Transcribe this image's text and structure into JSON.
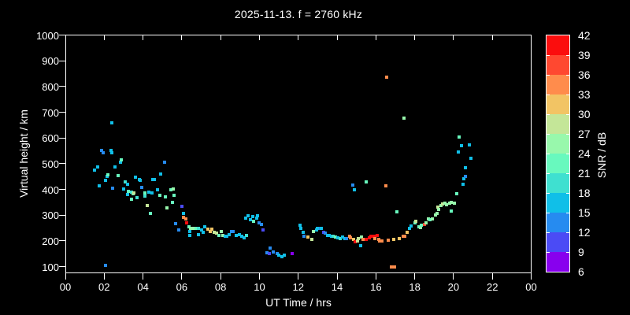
{
  "colors": {
    "background": "#000000",
    "foreground": "#ffffff"
  },
  "chart_data": {
    "type": "scatter",
    "title": "2025-11-13. f = 2760 kHz",
    "xlabel": "UT Time / hrs",
    "ylabel": "Virtual height / km",
    "x_unit": "hours UT",
    "y_unit": "km",
    "color_unit": "SNR / dB",
    "x_range_hours": [
      0,
      24
    ],
    "y_range_km": [
      100,
      1000
    ],
    "x_tick_hours": [
      0,
      2,
      4,
      6,
      8,
      10,
      12,
      14,
      16,
      18,
      20,
      22,
      24
    ],
    "x_tick_labels": [
      "00",
      "02",
      "04",
      "06",
      "08",
      "10",
      "12",
      "14",
      "16",
      "18",
      "20",
      "22",
      "00"
    ],
    "y_tick_km": [
      100,
      200,
      300,
      400,
      500,
      600,
      700,
      800,
      900,
      1000
    ],
    "y_tick_labels": [
      "100",
      "200",
      "300",
      "400",
      "500",
      "600",
      "700",
      "800",
      "900",
      "1000"
    ],
    "grid": false,
    "marker": "square",
    "points_format": [
      "ut_hours",
      "virtual_height_km",
      "snr_db"
    ],
    "points": [
      [
        1.5,
        476,
        16.5
      ],
      [
        1.65,
        486,
        16.5
      ],
      [
        1.75,
        415,
        16.5
      ],
      [
        1.85,
        553,
        13.5
      ],
      [
        1.95,
        541,
        13.5
      ],
      [
        2.05,
        106,
        13.5
      ],
      [
        2.05,
        434,
        16.5
      ],
      [
        2.15,
        452,
        16.5
      ],
      [
        2.2,
        458,
        22.5
      ],
      [
        2.35,
        553,
        16.5
      ],
      [
        2.4,
        660,
        16.5
      ],
      [
        2.4,
        541,
        16.5
      ],
      [
        2.45,
        406,
        13.5
      ],
      [
        2.55,
        486,
        16.5
      ],
      [
        2.7,
        455,
        22.5
      ],
      [
        2.85,
        507,
        16.5
      ],
      [
        2.9,
        516,
        22.5
      ],
      [
        3.0,
        403,
        16.5
      ],
      [
        3.1,
        430,
        19.5
      ],
      [
        3.2,
        421,
        16.5
      ],
      [
        3.2,
        379,
        16.5
      ],
      [
        3.25,
        391,
        22.5
      ],
      [
        3.4,
        388,
        19.5
      ],
      [
        3.4,
        363,
        22.5
      ],
      [
        3.5,
        382,
        22.5
      ],
      [
        3.55,
        385,
        28.5
      ],
      [
        3.6,
        446,
        16.5
      ],
      [
        3.7,
        369,
        19.5
      ],
      [
        3.8,
        437,
        16.5
      ],
      [
        3.85,
        434,
        16.5
      ],
      [
        3.95,
        409,
        13.5
      ],
      [
        4.1,
        385,
        22.5
      ],
      [
        4.1,
        375,
        19.5
      ],
      [
        4.2,
        336,
        28.5
      ],
      [
        4.3,
        388,
        16.5
      ],
      [
        4.4,
        308,
        22.5
      ],
      [
        4.45,
        385,
        16.5
      ],
      [
        4.5,
        437,
        16.5
      ],
      [
        4.6,
        437,
        16.5
      ],
      [
        4.75,
        400,
        16.5
      ],
      [
        4.85,
        376,
        22.5
      ],
      [
        4.9,
        461,
        16.5
      ],
      [
        5.1,
        507,
        13.5
      ],
      [
        5.15,
        372,
        22.5
      ],
      [
        5.25,
        327,
        25.5
      ],
      [
        5.45,
        400,
        22.5
      ],
      [
        5.5,
        351,
        22.5
      ],
      [
        5.55,
        403,
        25.5
      ],
      [
        5.6,
        376,
        22.5
      ],
      [
        5.7,
        268,
        13.5
      ],
      [
        5.85,
        241,
        13.5
      ],
      [
        6.0,
        333,
        10.5
      ],
      [
        6.1,
        308,
        16.5
      ],
      [
        6.1,
        290,
        34.5
      ],
      [
        6.2,
        284,
        34.5
      ],
      [
        6.25,
        271,
        40.5
      ],
      [
        6.35,
        256,
        22.5
      ],
      [
        6.4,
        235,
        16.5
      ],
      [
        6.4,
        222,
        16.5
      ],
      [
        6.45,
        250,
        25.5
      ],
      [
        6.6,
        250,
        25.5
      ],
      [
        6.75,
        247,
        22.5
      ],
      [
        6.85,
        247,
        19.5
      ],
      [
        6.85,
        225,
        16.5
      ],
      [
        7.0,
        241,
        16.5
      ],
      [
        7.1,
        232,
        16.5
      ],
      [
        7.2,
        256,
        16.5
      ],
      [
        7.35,
        244,
        31.5
      ],
      [
        7.45,
        235,
        31.5
      ],
      [
        7.55,
        244,
        31.5
      ],
      [
        7.65,
        232,
        28.5
      ],
      [
        7.8,
        229,
        28.5
      ],
      [
        7.9,
        222,
        22.5
      ],
      [
        8.05,
        235,
        25.5
      ],
      [
        8.1,
        222,
        25.5
      ],
      [
        8.25,
        219,
        16.5
      ],
      [
        8.3,
        219,
        16.5
      ],
      [
        8.45,
        225,
        16.5
      ],
      [
        8.55,
        235,
        13.5
      ],
      [
        8.65,
        235,
        13.5
      ],
      [
        8.8,
        222,
        16.5
      ],
      [
        8.95,
        225,
        16.5
      ],
      [
        9.1,
        219,
        16.5
      ],
      [
        9.2,
        213,
        16.5
      ],
      [
        9.3,
        287,
        16.5
      ],
      [
        9.35,
        222,
        19.5
      ],
      [
        9.4,
        296,
        16.5
      ],
      [
        9.55,
        281,
        16.5
      ],
      [
        9.65,
        293,
        16.5
      ],
      [
        9.7,
        277,
        22.5
      ],
      [
        9.85,
        287,
        16.5
      ],
      [
        9.9,
        296,
        16.5
      ],
      [
        10.0,
        271,
        13.5
      ],
      [
        10.1,
        265,
        13.5
      ],
      [
        10.2,
        241,
        10.5
      ],
      [
        10.4,
        155,
        13.5
      ],
      [
        10.5,
        149,
        10.5
      ],
      [
        10.55,
        173,
        13.5
      ],
      [
        10.7,
        158,
        13.5
      ],
      [
        10.9,
        152,
        13.5
      ],
      [
        11.0,
        143,
        16.5
      ],
      [
        11.15,
        137,
        16.5
      ],
      [
        11.3,
        143,
        16.5
      ],
      [
        11.7,
        149,
        7.5
      ],
      [
        12.1,
        262,
        16.5
      ],
      [
        12.15,
        247,
        16.5
      ],
      [
        12.25,
        232,
        16.5
      ],
      [
        12.3,
        219,
        13.5
      ],
      [
        12.5,
        216,
        31.5
      ],
      [
        12.7,
        207,
        28.5
      ],
      [
        12.8,
        235,
        25.5
      ],
      [
        12.95,
        241,
        16.5
      ],
      [
        13.0,
        250,
        16.5
      ],
      [
        13.15,
        247,
        13.5
      ],
      [
        13.2,
        250,
        16.5
      ],
      [
        13.3,
        232,
        10.5
      ],
      [
        13.4,
        229,
        13.5
      ],
      [
        13.5,
        222,
        16.5
      ],
      [
        13.6,
        222,
        16.5
      ],
      [
        13.7,
        219,
        16.5
      ],
      [
        13.8,
        219,
        19.5
      ],
      [
        13.9,
        216,
        22.5
      ],
      [
        14.05,
        213,
        16.5
      ],
      [
        14.15,
        210,
        19.5
      ],
      [
        14.3,
        216,
        16.5
      ],
      [
        14.4,
        210,
        16.5
      ],
      [
        14.5,
        210,
        13.5
      ],
      [
        14.65,
        219,
        34.5
      ],
      [
        14.7,
        213,
        34.5
      ],
      [
        14.8,
        418,
        13.5
      ],
      [
        14.85,
        207,
        31.5
      ],
      [
        14.9,
        400,
        16.5
      ],
      [
        14.95,
        195,
        40.5
      ],
      [
        15.05,
        198,
        28.5
      ],
      [
        15.1,
        210,
        28.5
      ],
      [
        15.2,
        180,
        16.5
      ],
      [
        15.25,
        216,
        25.5
      ],
      [
        15.35,
        207,
        34.5
      ],
      [
        15.5,
        430,
        22.5
      ],
      [
        15.5,
        207,
        40.5
      ],
      [
        15.65,
        213,
        40.5
      ],
      [
        15.75,
        219,
        40.5
      ],
      [
        15.9,
        219,
        40.5
      ],
      [
        15.95,
        210,
        34.5
      ],
      [
        16.05,
        222,
        40.5
      ],
      [
        16.15,
        207,
        34.5
      ],
      [
        16.2,
        198,
        34.5
      ],
      [
        16.3,
        201,
        34.5
      ],
      [
        16.55,
        835,
        34.5
      ],
      [
        16.5,
        415,
        34.5
      ],
      [
        16.65,
        204,
        34.5
      ],
      [
        16.8,
        100,
        34.5
      ],
      [
        16.95,
        100,
        34.5
      ],
      [
        16.9,
        207,
        31.5
      ],
      [
        17.1,
        314,
        22.5
      ],
      [
        17.2,
        210,
        31.5
      ],
      [
        17.4,
        219,
        34.5
      ],
      [
        17.45,
        678,
        25.5
      ],
      [
        17.5,
        219,
        34.5
      ],
      [
        17.6,
        232,
        31.5
      ],
      [
        17.75,
        247,
        16.5
      ],
      [
        17.8,
        259,
        16.5
      ],
      [
        18.0,
        271,
        22.5
      ],
      [
        18.05,
        277,
        28.5
      ],
      [
        18.2,
        256,
        22.5
      ],
      [
        18.3,
        253,
        25.5
      ],
      [
        18.35,
        262,
        22.5
      ],
      [
        18.5,
        265,
        37.5
      ],
      [
        18.6,
        271,
        25.5
      ],
      [
        18.7,
        284,
        25.5
      ],
      [
        18.8,
        281,
        22.5
      ],
      [
        18.9,
        284,
        25.5
      ],
      [
        19.05,
        299,
        25.5
      ],
      [
        19.15,
        308,
        25.5
      ],
      [
        19.2,
        330,
        28.5
      ],
      [
        19.25,
        323,
        25.5
      ],
      [
        19.35,
        336,
        25.5
      ],
      [
        19.45,
        342,
        28.5
      ],
      [
        19.55,
        345,
        25.5
      ],
      [
        19.65,
        339,
        25.5
      ],
      [
        19.8,
        345,
        25.5
      ],
      [
        19.9,
        348,
        25.5
      ],
      [
        19.9,
        317,
        22.5
      ],
      [
        20.05,
        345,
        25.5
      ],
      [
        20.15,
        382,
        22.5
      ],
      [
        20.25,
        544,
        16.5
      ],
      [
        20.3,
        605,
        22.5
      ],
      [
        20.4,
        571,
        16.5
      ],
      [
        20.5,
        421,
        16.5
      ],
      [
        20.55,
        440,
        16.5
      ],
      [
        20.6,
        483,
        16.5
      ],
      [
        20.6,
        452,
        13.5
      ],
      [
        20.8,
        574,
        16.5
      ],
      [
        20.9,
        522,
        16.5
      ]
    ],
    "colorbar": {
      "label": "SNR / dB",
      "min": 6,
      "max": 42,
      "step": 3,
      "tick_labels_top_to_bottom": [
        "42",
        "39",
        "36",
        "33",
        "30",
        "27",
        "24",
        "21",
        "18",
        "15",
        "12",
        "9",
        "6"
      ],
      "colors_low_to_high": [
        "#8800ee",
        "#4b4bf5",
        "#268bf0",
        "#10bfe8",
        "#3fe0d0",
        "#68f9be",
        "#98f8ac",
        "#c4e698",
        "#f2c464",
        "#ff8c4c",
        "#ff4830",
        "#fb0d0d"
      ]
    }
  }
}
